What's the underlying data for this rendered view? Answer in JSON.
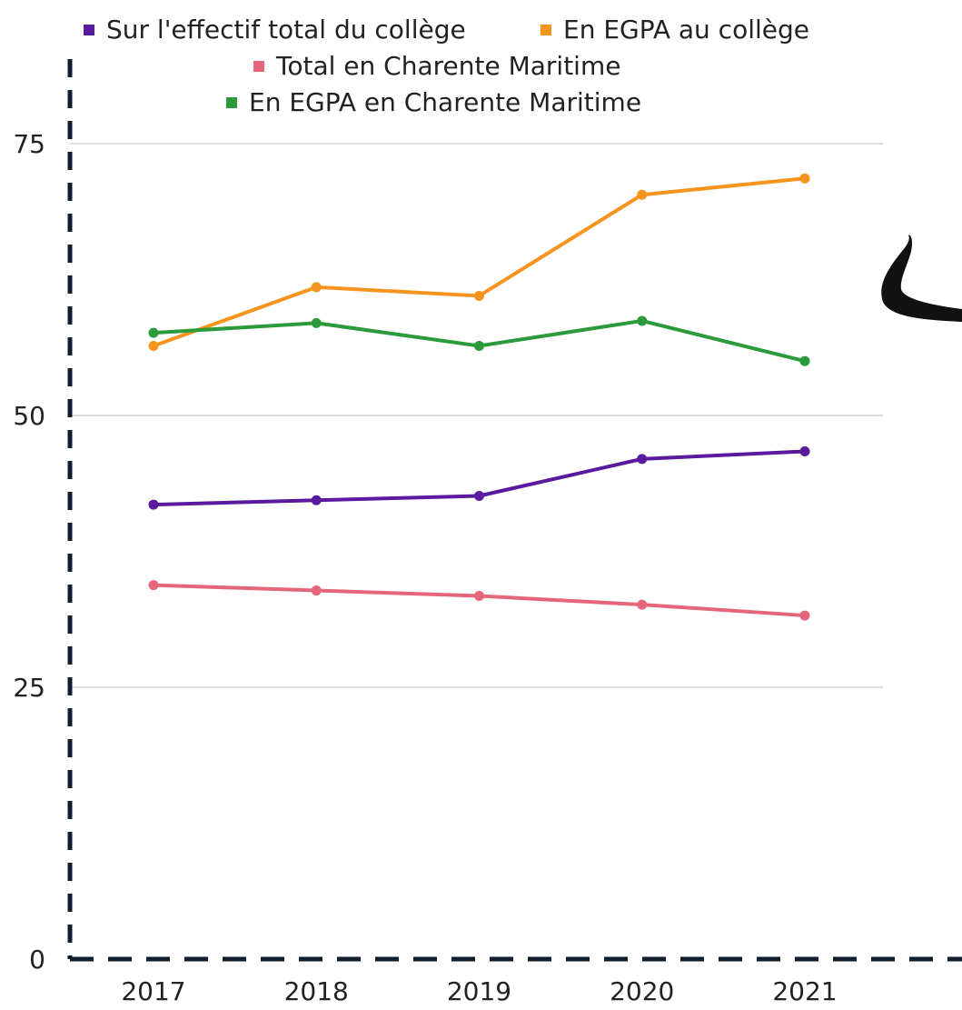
{
  "chart_data": {
    "type": "line",
    "title": "",
    "xlabel": "",
    "ylabel": "",
    "categories": [
      "2017",
      "2018",
      "2019",
      "2020",
      "2021"
    ],
    "ylim": [
      0,
      75
    ],
    "yticks": [
      "0",
      "25",
      "50",
      "75"
    ],
    "grid": true,
    "legend_position": "top",
    "series": [
      {
        "name": "Sur l'effectif total du collège",
        "color": "#5a1a9e",
        "values": [
          41.8,
          42.2,
          42.6,
          46.0,
          46.7
        ]
      },
      {
        "name": "En EGPA au collège",
        "color": "#f7941d",
        "values": [
          56.4,
          61.8,
          61.0,
          70.3,
          71.8
        ]
      },
      {
        "name": "Total en Charente Maritime",
        "color": "#e5667a",
        "values": [
          34.4,
          33.9,
          33.4,
          32.6,
          31.6
        ]
      },
      {
        "name": "En EGPA en Charente Maritime",
        "color": "#2a9a3a",
        "values": [
          57.6,
          58.5,
          56.4,
          58.7,
          55.0
        ]
      }
    ]
  },
  "colors": {
    "grid": "#c8c8c8",
    "axis": "#0f1e2e",
    "text": "#222222",
    "decoration": "#111111"
  },
  "decoration": {
    "icon": "brush-stroke-icon"
  }
}
